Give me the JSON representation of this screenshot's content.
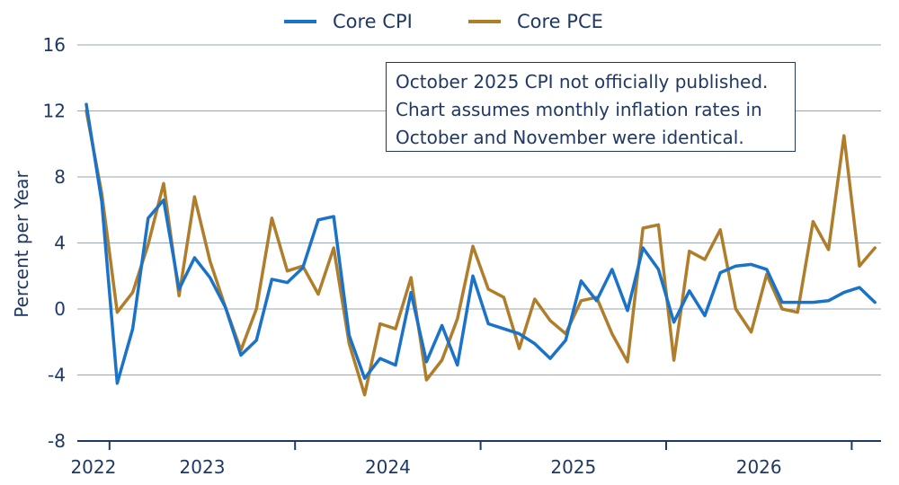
{
  "chart_data": {
    "type": "line",
    "ylabel": "Percent per Year",
    "xlabel": "",
    "ylim": [
      -8,
      16
    ],
    "yticks": [
      -8,
      -4,
      0,
      4,
      8,
      12,
      16
    ],
    "year_labels": [
      "2022",
      "2023",
      "2024",
      "2025",
      "2026"
    ],
    "x_start": "2021-11",
    "legend_position": "top-center",
    "grid": true,
    "annotation": [
      "October 2025 CPI not officially published.",
      "Chart assumes monthly inflation rates in",
      "October and November were identical."
    ],
    "series": [
      {
        "name": "Core CPI",
        "color": "#1a73c8",
        "values": [
          12.4,
          6.5,
          -4.5,
          -1.2,
          5.5,
          6.6,
          1.2,
          3.1,
          1.9,
          0.1,
          -2.8,
          -1.9,
          1.8,
          1.6,
          2.5,
          5.4,
          5.6,
          -1.6,
          -4.2,
          -3.0,
          -3.4,
          1.0,
          -3.2,
          -1.0,
          -3.4,
          2.0,
          -0.9,
          -1.2,
          -1.5,
          -2.1,
          -3.0,
          -1.9,
          1.7,
          0.5,
          2.4,
          -0.1,
          3.7,
          2.4,
          -0.8,
          1.1,
          -0.4,
          2.2,
          2.6,
          2.7,
          2.4,
          0.4,
          0.4,
          0.4,
          0.5,
          1.0,
          1.3,
          0.4
        ]
      },
      {
        "name": "Core PCE",
        "color": "#b07d2b",
        "values": [
          12.0,
          7.0,
          -0.2,
          1.0,
          3.9,
          7.6,
          0.8,
          6.8,
          2.9,
          0.1,
          -2.5,
          0.0,
          5.5,
          2.3,
          2.6,
          0.9,
          3.7,
          -2.1,
          -5.2,
          -0.9,
          -1.2,
          1.9,
          -4.3,
          -3.1,
          -0.6,
          3.8,
          1.2,
          0.7,
          -2.4,
          0.6,
          -0.7,
          -1.5,
          0.5,
          0.7,
          -1.5,
          -3.2,
          4.9,
          5.1,
          -3.1,
          3.5,
          3.0,
          4.8,
          0.0,
          -1.4,
          2.1,
          0.0,
          -0.2,
          5.3,
          3.6,
          10.5,
          2.6,
          3.7
        ]
      }
    ]
  }
}
